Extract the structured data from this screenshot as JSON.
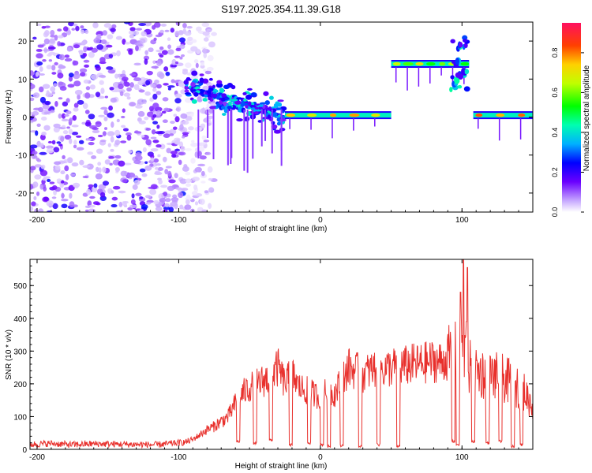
{
  "title": "S197.2025.354.11.39.G18",
  "chart_data": [
    {
      "type": "heatmap",
      "title": "S197.2025.354.11.39.G18",
      "xlabel": "Height of straight line (km)",
      "ylabel": "Frequency (Hz)",
      "xlim": [
        -205,
        150
      ],
      "ylim": [
        -25,
        25
      ],
      "xticks": [
        -200,
        -100,
        0,
        100
      ],
      "yticks": [
        -20,
        -10,
        0,
        10,
        20
      ],
      "colorbar": {
        "label": "Normalized spectral amplitude",
        "range": [
          0,
          0.95
        ],
        "ticks": [
          0.0,
          0.2,
          0.4,
          0.6,
          0.8
        ],
        "tick_labels": [
          "0.0",
          "0.2",
          "0.4",
          "0.6",
          "0.8"
        ]
      },
      "features": [
        {
          "name": "diffuse noise",
          "x_range": [
            -205,
            -95
          ],
          "freq_range": [
            -25,
            25
          ],
          "amplitude": 0.1
        },
        {
          "name": "descending tone",
          "x_range": [
            -95,
            -25
          ],
          "freq_start": 8,
          "freq_end": 0,
          "amplitude": 0.3
        },
        {
          "name": "carrier line",
          "x_range": [
            -25,
            50
          ],
          "freq": 0.5,
          "amplitude": 0.9
        },
        {
          "name": "offset carrier",
          "x_range": [
            50,
            105
          ],
          "freq": 14,
          "amplitude": 0.7
        },
        {
          "name": "carrier line",
          "x_range": [
            108,
            150
          ],
          "freq": 0.5,
          "amplitude": 0.9
        }
      ]
    },
    {
      "type": "line",
      "xlabel": "Height of straight line (km)",
      "ylabel": "SNR (10 * v/v)",
      "xlim": [
        -205,
        150
      ],
      "ylim": [
        0,
        580
      ],
      "xticks": [
        -200,
        -100,
        0,
        100
      ],
      "yticks": [
        0,
        100,
        200,
        300,
        400,
        500
      ],
      "color": "#e8302c",
      "series": [
        {
          "name": "SNR",
          "x": [
            -205,
            -190,
            -175,
            -160,
            -145,
            -130,
            -115,
            -100,
            -95,
            -90,
            -85,
            -80,
            -75,
            -70,
            -65,
            -60,
            -55,
            -50,
            -45,
            -40,
            -35,
            -30,
            -25,
            -20,
            -15,
            -10,
            -5,
            0,
            5,
            10,
            15,
            20,
            25,
            30,
            35,
            40,
            45,
            50,
            55,
            60,
            65,
            70,
            75,
            80,
            85,
            90,
            95,
            100,
            105,
            110,
            115,
            120,
            125,
            130,
            135,
            140,
            145,
            150
          ],
          "values": [
            15,
            18,
            14,
            17,
            16,
            15,
            14,
            20,
            22,
            30,
            45,
            60,
            70,
            85,
            100,
            140,
            170,
            190,
            200,
            210,
            220,
            250,
            200,
            230,
            190,
            180,
            170,
            160,
            180,
            170,
            210,
            250,
            240,
            230,
            240,
            250,
            245,
            250,
            255,
            255,
            260,
            260,
            265,
            270,
            265,
            280,
            290,
            320,
            250,
            240,
            230,
            225,
            220,
            215,
            200,
            190,
            170,
            130
          ]
        }
      ],
      "spikes": [
        {
          "x": 99,
          "value": 480
        },
        {
          "x": 101,
          "value": 580
        },
        {
          "x": 103,
          "value": 390
        },
        {
          "x": 104,
          "value": 555
        }
      ],
      "dropouts": [
        {
          "x": -58,
          "value": 20
        },
        {
          "x": -46,
          "value": 15
        },
        {
          "x": -35,
          "value": 25
        },
        {
          "x": -21,
          "value": 10
        },
        {
          "x": -8,
          "value": 15
        },
        {
          "x": 1,
          "value": 10
        },
        {
          "x": 6,
          "value": 5
        },
        {
          "x": 15,
          "value": 8
        },
        {
          "x": 28,
          "value": 5
        },
        {
          "x": 41,
          "value": 10
        },
        {
          "x": 55,
          "value": 5
        },
        {
          "x": 94,
          "value": 20
        },
        {
          "x": 97,
          "value": 10
        },
        {
          "x": 108,
          "value": 20
        },
        {
          "x": 118,
          "value": 15
        },
        {
          "x": 127,
          "value": 20
        },
        {
          "x": 136,
          "value": 5
        },
        {
          "x": 142,
          "value": 10
        }
      ]
    }
  ]
}
